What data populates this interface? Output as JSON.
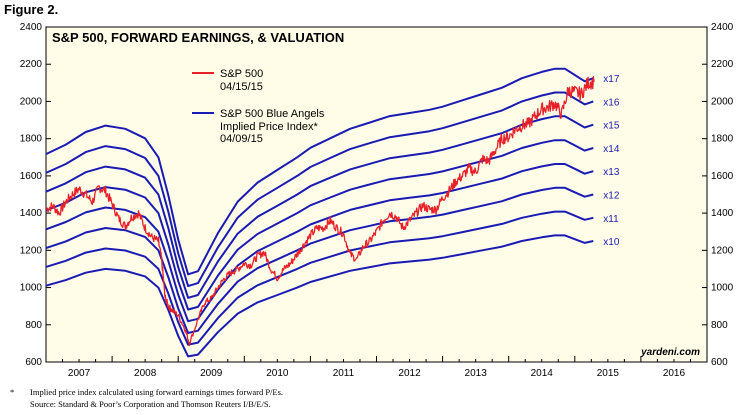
{
  "figure_label": "Figure 2.",
  "chart_data": {
    "type": "line",
    "title": "S&P 500, FORWARD EARNINGS, & VALUATION",
    "ylim": [
      600,
      2400
    ],
    "yticks": [
      600,
      800,
      1000,
      1200,
      1400,
      1600,
      1800,
      2000,
      2200,
      2400
    ],
    "xlim": [
      2007.0,
      2017.0
    ],
    "xlabels": [
      "2007",
      "2008",
      "2009",
      "2010",
      "2011",
      "2012",
      "2013",
      "2014",
      "2015",
      "2016"
    ],
    "grid": false,
    "legend": [
      {
        "name": "S&P 500",
        "date": "04/15/15",
        "color": "#e8202a"
      },
      {
        "name": "S&P 500 Blue Angels Implied Price Index*",
        "line1": "S&P 500 Blue Angels",
        "line2": "Implied Price Index*",
        "date": "04/09/15",
        "color": "#1a1ab4"
      }
    ],
    "sp500": {
      "x": [
        2007.0,
        2007.1,
        2007.2,
        2007.3,
        2007.4,
        2007.5,
        2007.6,
        2007.7,
        2007.8,
        2007.9,
        2008.0,
        2008.1,
        2008.2,
        2008.3,
        2008.4,
        2008.5,
        2008.6,
        2008.7,
        2008.75,
        2008.8,
        2008.85,
        2008.9,
        2009.0,
        2009.1,
        2009.17,
        2009.3,
        2009.4,
        2009.5,
        2009.6,
        2009.7,
        2009.8,
        2009.9,
        2010.0,
        2010.1,
        2010.2,
        2010.3,
        2010.4,
        2010.5,
        2010.6,
        2010.7,
        2010.8,
        2010.9,
        2011.0,
        2011.1,
        2011.2,
        2011.3,
        2011.4,
        2011.5,
        2011.6,
        2011.7,
        2011.8,
        2011.9,
        2012.0,
        2012.1,
        2012.2,
        2012.3,
        2012.4,
        2012.5,
        2012.6,
        2012.7,
        2012.8,
        2012.9,
        2013.0,
        2013.1,
        2013.2,
        2013.3,
        2013.4,
        2013.5,
        2013.6,
        2013.7,
        2013.8,
        2013.9,
        2014.0,
        2014.1,
        2014.2,
        2014.3,
        2014.4,
        2014.5,
        2014.6,
        2014.7,
        2014.8,
        2014.9,
        2015.0,
        2015.1,
        2015.2,
        2015.29
      ],
      "y": [
        1420,
        1440,
        1400,
        1460,
        1500,
        1530,
        1500,
        1460,
        1540,
        1520,
        1450,
        1370,
        1330,
        1380,
        1400,
        1320,
        1270,
        1250,
        1150,
        950,
        900,
        880,
        850,
        780,
        700,
        830,
        920,
        940,
        1000,
        1050,
        1080,
        1100,
        1130,
        1120,
        1170,
        1190,
        1100,
        1050,
        1100,
        1130,
        1180,
        1230,
        1280,
        1320,
        1320,
        1360,
        1320,
        1290,
        1180,
        1150,
        1220,
        1250,
        1300,
        1360,
        1400,
        1380,
        1320,
        1360,
        1400,
        1440,
        1420,
        1420,
        1480,
        1520,
        1570,
        1600,
        1640,
        1620,
        1690,
        1680,
        1740,
        1800,
        1810,
        1850,
        1870,
        1880,
        1920,
        1960,
        1970,
        1990,
        1930,
        2060,
        2050,
        2040,
        2100,
        2105
      ]
    },
    "blue_angels": {
      "x": [
        2007.0,
        2007.3,
        2007.6,
        2007.9,
        2008.2,
        2008.5,
        2008.7,
        2008.85,
        2009.0,
        2009.15,
        2009.3,
        2009.6,
        2009.9,
        2010.2,
        2010.5,
        2010.8,
        2011.0,
        2011.3,
        2011.6,
        2011.9,
        2012.2,
        2012.5,
        2012.8,
        2013.0,
        2013.3,
        2013.6,
        2013.9,
        2014.2,
        2014.5,
        2014.7,
        2014.85,
        2015.0,
        2015.15,
        2015.28
      ],
      "base_x10": [
        1010,
        1040,
        1080,
        1100,
        1090,
        1060,
        1000,
        880,
        740,
        630,
        640,
        760,
        860,
        920,
        960,
        1000,
        1030,
        1060,
        1090,
        1110,
        1130,
        1140,
        1150,
        1160,
        1180,
        1200,
        1220,
        1250,
        1270,
        1280,
        1280,
        1260,
        1240,
        1250
      ],
      "series": [
        {
          "name": "x17",
          "multiple": 17
        },
        {
          "name": "x16",
          "multiple": 16
        },
        {
          "name": "x15",
          "multiple": 15
        },
        {
          "name": "x14",
          "multiple": 14
        },
        {
          "name": "x13",
          "multiple": 13
        },
        {
          "name": "x12",
          "multiple": 12
        },
        {
          "name": "x11",
          "multiple": 11
        },
        {
          "name": "x10",
          "multiple": 10
        }
      ]
    },
    "annotations": [
      "yardeni.com"
    ]
  },
  "footnote": {
    "marker": "*",
    "line1": "Implied price index calculated using forward earnings times forward P/Es.",
    "line2": "Source: Standard & Poor’s Corporation and Thomson Reuters I/B/E/S."
  }
}
